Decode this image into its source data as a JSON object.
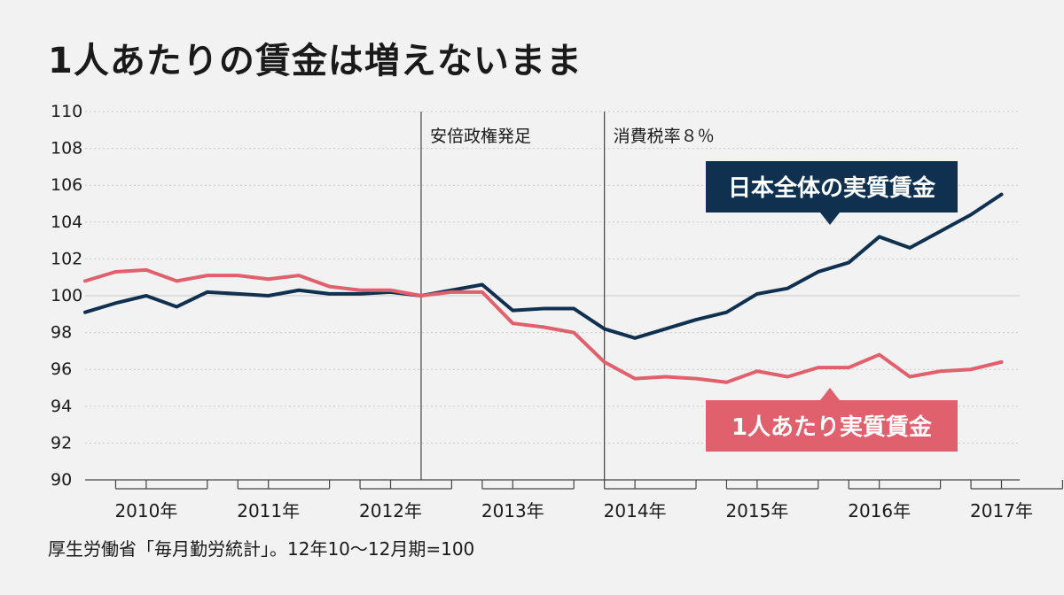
{
  "title": "1人あたりの賃金は増えないまま",
  "source": "厚生労働省「毎月勤労統計」。12年10〜12月期=100",
  "chart_data": {
    "type": "line",
    "title": "1人あたりの賃金は増えないまま",
    "ylim": [
      90,
      110
    ],
    "yticks": [
      90,
      92,
      94,
      96,
      98,
      100,
      102,
      104,
      106,
      108,
      110
    ],
    "grid": true,
    "year_labels": [
      "2010年",
      "2011年",
      "2012年",
      "2013年",
      "2014年",
      "2015年",
      "2016年",
      "2017年"
    ],
    "quarters_per_year": 4,
    "x_start_quarter": 0,
    "series": [
      {
        "name": "日本全体の実質賃金",
        "color": "#10304f",
        "values": [
          99.1,
          99.6,
          100.0,
          99.4,
          100.2,
          100.1,
          100.0,
          100.3,
          100.1,
          100.1,
          100.2,
          100.0,
          100.3,
          100.6,
          99.2,
          99.3,
          99.3,
          98.2,
          97.7,
          98.2,
          98.7,
          99.1,
          100.1,
          100.4,
          101.3,
          101.8,
          103.2,
          102.6,
          103.5,
          104.4,
          105.5
        ]
      },
      {
        "name": "1人あたり実質賃金",
        "color": "#e0606e",
        "values": [
          100.8,
          101.3,
          101.4,
          100.8,
          101.1,
          101.1,
          100.9,
          101.1,
          100.5,
          100.3,
          100.3,
          100.0,
          100.2,
          100.2,
          98.5,
          98.3,
          98.0,
          96.4,
          95.5,
          95.6,
          95.5,
          95.3,
          95.9,
          95.6,
          96.1,
          96.1,
          96.8,
          95.6,
          95.9,
          96.0,
          96.4
        ]
      }
    ],
    "events": [
      {
        "label": "安倍政権発足",
        "quarter": 11
      },
      {
        "label": "消費税率８％",
        "quarter": 17
      }
    ]
  }
}
